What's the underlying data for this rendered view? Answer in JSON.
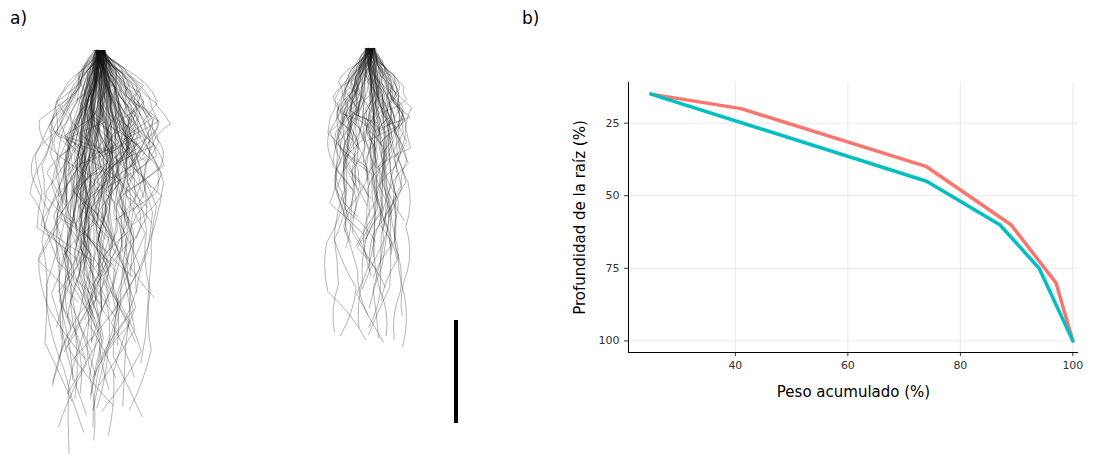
{
  "image_panel": {
    "panel_label": "a)"
  },
  "chart_data": {
    "type": "line",
    "panel_label": "b)",
    "x_label": "Peso acumulado (%)",
    "y_label": "Profundidad de la raíz (%)",
    "series": [
      {
        "color": "#F8766D",
        "x": [
          25,
          41,
          74,
          89,
          97,
          100
        ],
        "values": [
          15,
          20,
          40,
          60,
          80,
          100
        ]
      },
      {
        "color": "#00BFC4",
        "x": [
          25,
          74,
          87,
          94,
          100
        ],
        "values": [
          15,
          45,
          60,
          75,
          100
        ]
      }
    ],
    "xlim": [
      21,
      101
    ],
    "xticks": [
      40,
      60,
      80,
      100
    ],
    "ylim": [
      11,
      104
    ],
    "yticks": [
      25,
      50,
      75,
      100
    ],
    "grid": true
  }
}
